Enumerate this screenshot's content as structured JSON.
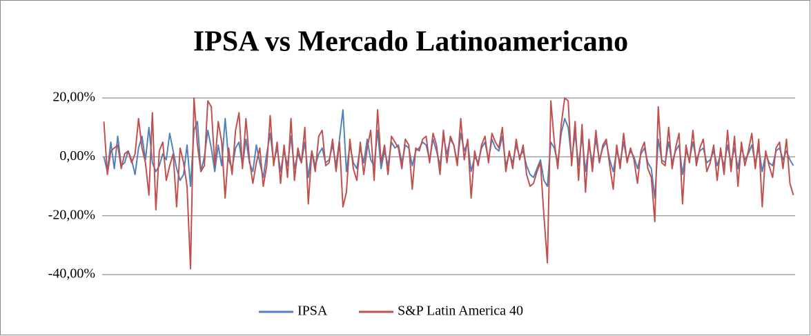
{
  "chart_data": {
    "type": "line",
    "title": "IPSA vs Mercado Latinoamericano",
    "ylim": [
      -40,
      20
    ],
    "yticks": [
      {
        "value": 20,
        "label": "20,00%"
      },
      {
        "value": 0,
        "label": "0,00%"
      },
      {
        "value": -20,
        "label": "-20,00%"
      },
      {
        "value": -40,
        "label": "-40,00%"
      }
    ],
    "grid": true,
    "legend": "bottom",
    "series": [
      {
        "name": "IPSA",
        "color": "#4f81bd",
        "values": [
          0,
          -5,
          5,
          -4,
          7,
          -3,
          -2,
          2,
          -1,
          -6,
          3,
          7,
          -1,
          10,
          -2,
          -5,
          -3,
          1,
          -1,
          8,
          2,
          -4,
          -8,
          -6,
          4,
          -10,
          9,
          12,
          -5,
          0,
          9,
          3,
          -5,
          4,
          -3,
          13,
          -1,
          -4,
          3,
          5,
          -3,
          6,
          -2,
          -5,
          4,
          -2,
          -7,
          1,
          8,
          -2,
          3,
          -5,
          2,
          -3,
          7,
          -4,
          1,
          -2,
          5,
          -7,
          2,
          -3,
          1,
          3,
          -2,
          -1,
          4,
          -3,
          6,
          16,
          -5,
          4,
          -2,
          -4,
          3,
          -2,
          6,
          -1,
          -3,
          9,
          -4,
          2,
          -3,
          5,
          3,
          4,
          -2,
          4,
          3,
          -3,
          2,
          3,
          5,
          4,
          -1,
          6,
          2,
          -3,
          7,
          1,
          6,
          4,
          -2,
          8,
          2,
          5,
          -5,
          0,
          -2,
          3,
          5,
          -1,
          6,
          3,
          2,
          7,
          -3,
          1,
          -2,
          4,
          0,
          2,
          -3,
          -6,
          -7,
          -4,
          -1,
          -8,
          -10,
          5,
          3,
          -2,
          8,
          13,
          10,
          -1,
          8,
          -3,
          7,
          -5,
          4,
          -2,
          6,
          -1,
          3,
          5,
          -1,
          -5,
          2,
          -2,
          5,
          -1,
          2,
          0,
          -4,
          1,
          3,
          -2,
          -4,
          -14,
          6,
          -1,
          -2,
          5,
          -2,
          2,
          4,
          -6,
          2,
          -1,
          5,
          -1,
          2,
          3,
          -2,
          -1,
          2,
          -3,
          1,
          -3,
          4,
          -2,
          3,
          -4,
          3,
          -1,
          1,
          4,
          -2,
          3,
          -5,
          1,
          -2,
          -3,
          2,
          3,
          -1,
          2,
          -1,
          -3
        ]
      },
      {
        "name": "S&P Latin America 40",
        "color": "#c0504d",
        "values": [
          12,
          -6,
          2,
          3,
          4,
          -4,
          1,
          2,
          -2,
          1,
          13,
          3,
          -2,
          -13,
          15,
          -18,
          2,
          5,
          -8,
          -3,
          1,
          -17,
          3,
          -2,
          -10,
          -38,
          20,
          4,
          -5,
          -3,
          19,
          17,
          -3,
          12,
          5,
          -14,
          3,
          -6,
          9,
          15,
          -4,
          13,
          -1,
          -9,
          -2,
          3,
          -10,
          -3,
          14,
          -3,
          5,
          -9,
          4,
          -7,
          13,
          -8,
          3,
          -2,
          10,
          -16,
          2,
          -5,
          7,
          9,
          -3,
          -2,
          6,
          -5,
          5,
          -17,
          -12,
          6,
          -4,
          -8,
          5,
          -6,
          3,
          9,
          -8,
          16,
          -2,
          4,
          -6,
          7,
          5,
          3,
          -4,
          6,
          4,
          -11,
          3,
          2,
          6,
          7,
          -2,
          8,
          4,
          -6,
          9,
          -2,
          7,
          4,
          -3,
          13,
          -1,
          6,
          -14,
          2,
          -3,
          4,
          7,
          -2,
          8,
          5,
          3,
          10,
          -5,
          2,
          -4,
          6,
          -1,
          4,
          -6,
          -10,
          -9,
          -5,
          -2,
          -20,
          -36,
          19,
          5,
          -4,
          11,
          20,
          19,
          -3,
          12,
          -8,
          11,
          -12,
          6,
          -5,
          9,
          -2,
          4,
          6,
          -3,
          -11,
          4,
          -4,
          8,
          -2,
          3,
          -1,
          -9,
          2,
          5,
          -4,
          -7,
          -22,
          17,
          -2,
          -3,
          10,
          -4,
          3,
          8,
          -16,
          4,
          -2,
          9,
          -3,
          3,
          6,
          -5,
          -2,
          4,
          -8,
          3,
          -6,
          9,
          -5,
          7,
          -10,
          5,
          -3,
          2,
          8,
          -4,
          6,
          -17,
          2,
          -3,
          -7,
          3,
          5,
          -4,
          6,
          -9,
          -13
        ]
      }
    ]
  }
}
